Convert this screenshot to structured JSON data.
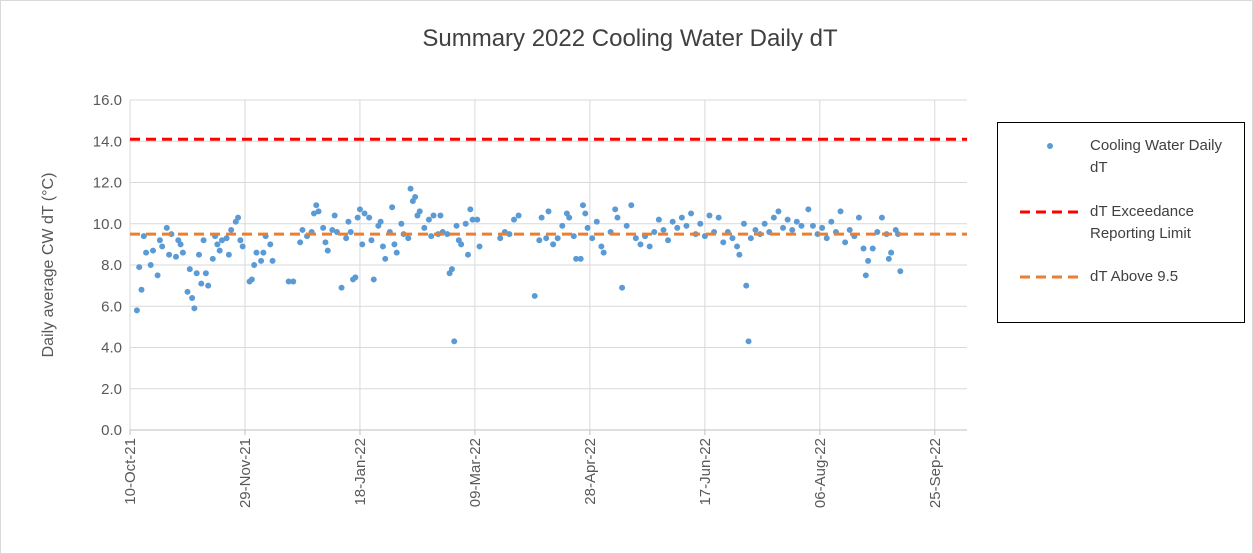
{
  "chart_data": {
    "type": "scatter",
    "title": "Summary 2022 Cooling Water Daily dT",
    "y_label": "Daily average CW dT (°C)",
    "xlim": [
      "2021-10-10",
      "2022-10-09"
    ],
    "xticks": [
      {
        "value": "2021-10-10",
        "label": "10-Oct-21"
      },
      {
        "value": "2021-11-29",
        "label": "29-Nov-21"
      },
      {
        "value": "2022-01-18",
        "label": "18-Jan-22"
      },
      {
        "value": "2022-03-09",
        "label": "09-Mar-22"
      },
      {
        "value": "2022-04-28",
        "label": "28-Apr-22"
      },
      {
        "value": "2022-06-17",
        "label": "17-Jun-22"
      },
      {
        "value": "2022-08-06",
        "label": "06-Aug-22"
      },
      {
        "value": "2022-09-25",
        "label": "25-Sep-22"
      }
    ],
    "ylim": [
      0,
      16
    ],
    "yticks": [
      {
        "value": 0,
        "label": "0.0"
      },
      {
        "value": 2,
        "label": "2.0"
      },
      {
        "value": 4,
        "label": "4.0"
      },
      {
        "value": 6,
        "label": "6.0"
      },
      {
        "value": 8,
        "label": "8.0"
      },
      {
        "value": 10,
        "label": "10.0"
      },
      {
        "value": 12,
        "label": "12.0"
      },
      {
        "value": 14,
        "label": "14.0"
      },
      {
        "value": 16,
        "label": "16.0"
      }
    ],
    "grid": true,
    "legend": "right",
    "series": [
      {
        "name": "Cooling Water Daily dT",
        "type": "scatter",
        "color": "#5b9bd5",
        "x": [
          "2021-10-13",
          "2021-10-14",
          "2021-10-15",
          "2021-10-16",
          "2021-10-17",
          "2021-10-19",
          "2021-10-20",
          "2021-10-22",
          "2021-10-23",
          "2021-10-24",
          "2021-10-26",
          "2021-10-27",
          "2021-10-28",
          "2021-10-30",
          "2021-10-31",
          "2021-11-01",
          "2021-11-02",
          "2021-11-04",
          "2021-11-05",
          "2021-11-06",
          "2021-11-07",
          "2021-11-08",
          "2021-11-09",
          "2021-11-10",
          "2021-11-11",
          "2021-11-12",
          "2021-11-13",
          "2021-11-15",
          "2021-11-16",
          "2021-11-17",
          "2021-11-18",
          "2021-11-19",
          "2021-11-21",
          "2021-11-22",
          "2021-11-23",
          "2021-11-25",
          "2021-11-26",
          "2021-11-27",
          "2021-11-28",
          "2021-12-01",
          "2021-12-02",
          "2021-12-03",
          "2021-12-04",
          "2021-12-06",
          "2021-12-07",
          "2021-12-08",
          "2021-12-10",
          "2021-12-11",
          "2021-12-18",
          "2021-12-20",
          "2021-12-23",
          "2021-12-24",
          "2021-12-26",
          "2021-12-28",
          "2021-12-29",
          "2021-12-30",
          "2021-12-31",
          "2022-01-02",
          "2022-01-03",
          "2022-01-04",
          "2022-01-06",
          "2022-01-07",
          "2022-01-08",
          "2022-01-10",
          "2022-01-12",
          "2022-01-13",
          "2022-01-14",
          "2022-01-15",
          "2022-01-16",
          "2022-01-17",
          "2022-01-18",
          "2022-01-19",
          "2022-01-20",
          "2022-01-22",
          "2022-01-23",
          "2022-01-24",
          "2022-01-26",
          "2022-01-27",
          "2022-01-28",
          "2022-01-29",
          "2022-01-31",
          "2022-02-01",
          "2022-02-02",
          "2022-02-03",
          "2022-02-05",
          "2022-02-06",
          "2022-02-08",
          "2022-02-09",
          "2022-02-10",
          "2022-02-11",
          "2022-02-12",
          "2022-02-13",
          "2022-02-15",
          "2022-02-17",
          "2022-02-18",
          "2022-02-19",
          "2022-02-21",
          "2022-02-22",
          "2022-02-23",
          "2022-02-25",
          "2022-02-26",
          "2022-02-27",
          "2022-02-28",
          "2022-03-01",
          "2022-03-02",
          "2022-03-03",
          "2022-03-05",
          "2022-03-06",
          "2022-03-07",
          "2022-03-08",
          "2022-03-10",
          "2022-03-11",
          "2022-03-20",
          "2022-03-22",
          "2022-03-24",
          "2022-03-26",
          "2022-03-28",
          "2022-04-04",
          "2022-04-06",
          "2022-04-07",
          "2022-04-09",
          "2022-04-10",
          "2022-04-12",
          "2022-04-14",
          "2022-04-16",
          "2022-04-18",
          "2022-04-19",
          "2022-04-21",
          "2022-04-22",
          "2022-04-24",
          "2022-04-25",
          "2022-04-26",
          "2022-04-27",
          "2022-04-29",
          "2022-05-01",
          "2022-05-03",
          "2022-05-04",
          "2022-05-07",
          "2022-05-09",
          "2022-05-10",
          "2022-05-12",
          "2022-05-14",
          "2022-05-16",
          "2022-05-18",
          "2022-05-20",
          "2022-05-22",
          "2022-05-24",
          "2022-05-26",
          "2022-05-28",
          "2022-05-30",
          "2022-06-01",
          "2022-06-03",
          "2022-06-05",
          "2022-06-07",
          "2022-06-09",
          "2022-06-11",
          "2022-06-13",
          "2022-06-15",
          "2022-06-17",
          "2022-06-19",
          "2022-06-21",
          "2022-06-23",
          "2022-06-25",
          "2022-06-27",
          "2022-06-29",
          "2022-07-01",
          "2022-07-02",
          "2022-07-04",
          "2022-07-05",
          "2022-07-06",
          "2022-07-07",
          "2022-07-09",
          "2022-07-11",
          "2022-07-13",
          "2022-07-15",
          "2022-07-17",
          "2022-07-19",
          "2022-07-21",
          "2022-07-23",
          "2022-07-25",
          "2022-07-27",
          "2022-07-29",
          "2022-08-01",
          "2022-08-03",
          "2022-08-05",
          "2022-08-07",
          "2022-08-09",
          "2022-08-11",
          "2022-08-13",
          "2022-08-15",
          "2022-08-17",
          "2022-08-19",
          "2022-08-21",
          "2022-08-23",
          "2022-08-25",
          "2022-08-26",
          "2022-08-27",
          "2022-08-29",
          "2022-08-31",
          "2022-09-02",
          "2022-09-04",
          "2022-09-05",
          "2022-09-06",
          "2022-09-08",
          "2022-09-09",
          "2022-09-10"
        ],
        "values": [
          5.8,
          7.9,
          6.8,
          9.4,
          8.6,
          8.0,
          8.7,
          7.5,
          9.2,
          8.9,
          9.8,
          8.5,
          9.5,
          8.4,
          9.2,
          9.0,
          8.6,
          6.7,
          7.8,
          6.4,
          5.9,
          7.6,
          8.5,
          7.1,
          9.2,
          7.6,
          7.0,
          8.3,
          9.4,
          9.0,
          8.7,
          9.2,
          9.3,
          8.5,
          9.7,
          10.1,
          10.3,
          9.2,
          8.9,
          7.2,
          7.3,
          8.0,
          8.6,
          8.2,
          8.6,
          9.4,
          9.0,
          8.2,
          7.2,
          7.2,
          9.1,
          9.7,
          9.4,
          9.6,
          10.5,
          10.9,
          10.6,
          9.8,
          9.1,
          8.7,
          9.7,
          10.4,
          9.6,
          6.9,
          9.3,
          10.1,
          9.6,
          7.3,
          7.4,
          10.3,
          10.7,
          9.0,
          10.5,
          10.3,
          9.2,
          7.3,
          9.9,
          10.1,
          8.9,
          8.3,
          9.6,
          10.8,
          9.0,
          8.6,
          10.0,
          9.5,
          9.3,
          11.7,
          11.1,
          11.3,
          10.4,
          10.6,
          9.8,
          10.2,
          9.4,
          10.4,
          9.5,
          10.4,
          9.6,
          9.5,
          7.6,
          7.8,
          4.3,
          9.9,
          9.2,
          9.0,
          10.0,
          8.5,
          10.7,
          10.2,
          10.2,
          8.9,
          9.3,
          9.6,
          9.5,
          10.2,
          10.4,
          6.5,
          9.2,
          10.3,
          9.3,
          10.6,
          9.0,
          9.3,
          9.9,
          10.5,
          10.3,
          9.4,
          8.3,
          8.3,
          10.9,
          10.5,
          9.8,
          9.3,
          10.1,
          8.9,
          8.6,
          9.6,
          10.7,
          10.3,
          6.9,
          9.9,
          10.9,
          9.3,
          9.0,
          9.4,
          8.9,
          9.6,
          10.2,
          9.7,
          9.2,
          10.1,
          9.8,
          10.3,
          9.9,
          10.5,
          9.5,
          10.0,
          9.4,
          10.4,
          9.6,
          10.3,
          9.1,
          9.6,
          9.3,
          8.9,
          8.5,
          10.0,
          7.0,
          4.3,
          9.3,
          9.7,
          9.5,
          10.0,
          9.6,
          10.3,
          10.6,
          9.8,
          10.2,
          9.7,
          10.1,
          9.9,
          10.7,
          9.9,
          9.5,
          9.8,
          9.3,
          10.1,
          9.6,
          10.6,
          9.1,
          9.7,
          9.4,
          10.3,
          8.8,
          7.5,
          8.2,
          8.8,
          9.6,
          10.3,
          9.5,
          8.3,
          8.6,
          9.7,
          9.5,
          7.7
        ]
      },
      {
        "name": "dT Exceedance Reporting Limit",
        "type": "line",
        "dash": true,
        "color": "#ff0000",
        "x": [
          "2021-10-10",
          "2022-10-09"
        ],
        "values": [
          14.1,
          14.1
        ]
      },
      {
        "name": "dT Above 9.5",
        "type": "line",
        "dash": true,
        "color": "#ed7d31",
        "x": [
          "2021-10-10",
          "2022-10-09"
        ],
        "values": [
          9.5,
          9.5
        ]
      }
    ]
  }
}
